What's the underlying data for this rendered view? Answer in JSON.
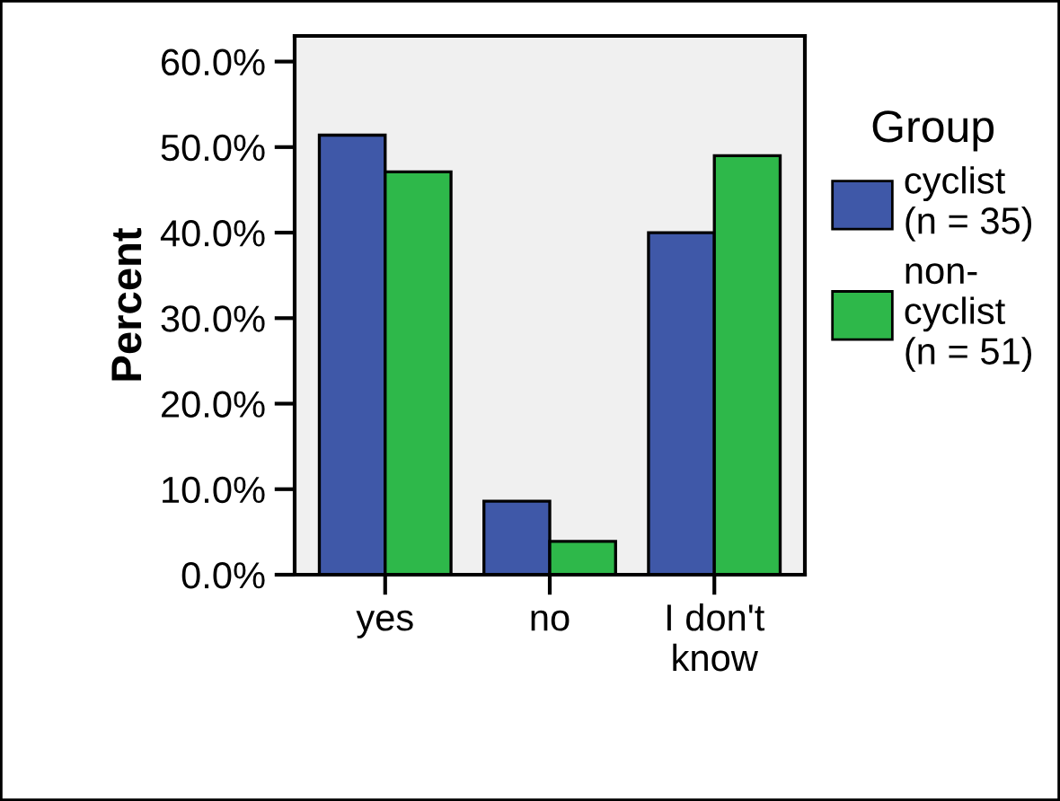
{
  "chart_data": {
    "type": "bar",
    "ylabel": "Percent",
    "legend_title": "Group",
    "categories": [
      "yes",
      "no",
      "I don't\nknow"
    ],
    "series": [
      {
        "name": "cyclist\n(n = 35)",
        "color": "#3f58a8",
        "values": [
          51.4,
          8.6,
          40.0
        ]
      },
      {
        "name": "non-\ncyclist\n(n = 51)",
        "color": "#2eb84a",
        "values": [
          47.1,
          3.9,
          49.0
        ]
      }
    ],
    "ylim": [
      0,
      63
    ],
    "yticks": [
      {
        "value": 0,
        "label": "0.0%"
      },
      {
        "value": 10,
        "label": "10.0%"
      },
      {
        "value": 20,
        "label": "20.0%"
      },
      {
        "value": 30,
        "label": "30.0%"
      },
      {
        "value": 40,
        "label": "40.0%"
      },
      {
        "value": 50,
        "label": "50.0%"
      },
      {
        "value": 60,
        "label": "60.0%"
      }
    ],
    "grid": false,
    "legend": "right"
  }
}
